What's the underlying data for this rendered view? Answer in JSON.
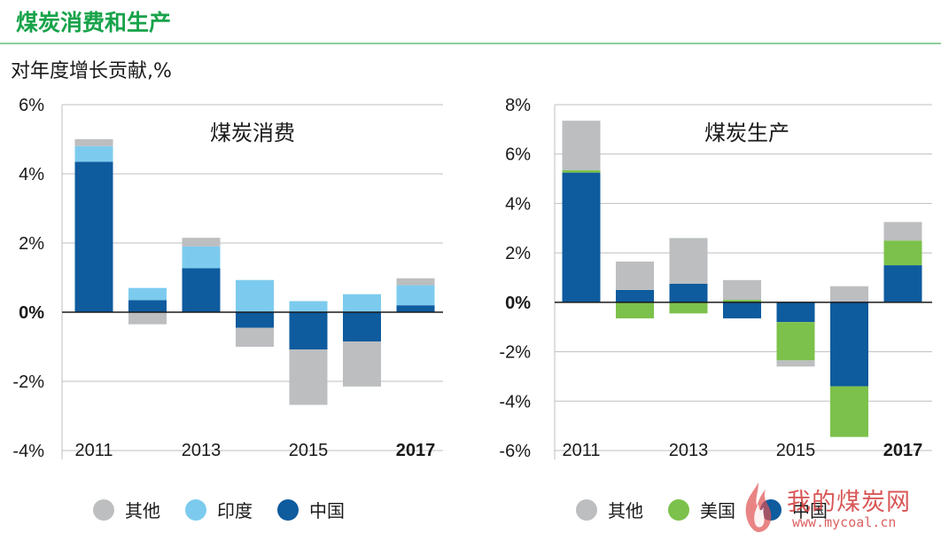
{
  "page_title": "煤炭消费和生产",
  "subtitle": "对年度增长贡献,%",
  "colors": {
    "other": "#bcbec0",
    "india": "#7ccbef",
    "china": "#0e5b9e",
    "usa": "#7cc14b",
    "title_green": "#17a34a"
  },
  "watermark": {
    "text": "我的煤炭网",
    "url": "www.mycoal.cn"
  },
  "chart_data": [
    {
      "type": "bar",
      "stacked": true,
      "title": "煤炭消费",
      "x": [
        2011,
        2012,
        2013,
        2014,
        2015,
        2016,
        2017
      ],
      "x_tick_labels": [
        "2011",
        "2013",
        "2015",
        "2017"
      ],
      "x_tick_bold": [
        "2017"
      ],
      "ylim": [
        -4,
        6
      ],
      "y_ticks": [
        6,
        4,
        2,
        0,
        -2,
        -4
      ],
      "y_tick_labels": [
        "6%",
        "4%",
        "2%",
        "0%",
        "-2%",
        "-4%"
      ],
      "grid": true,
      "series": [
        {
          "name": "中国",
          "color_key": "china",
          "values": [
            4.35,
            0.35,
            1.27,
            -0.45,
            -1.08,
            -0.85,
            0.2
          ]
        },
        {
          "name": "印度",
          "color_key": "india",
          "values": [
            0.45,
            0.35,
            0.63,
            0.93,
            0.32,
            0.52,
            0.58
          ]
        },
        {
          "name": "其他",
          "color_key": "other",
          "values": [
            0.2,
            -0.35,
            0.25,
            -0.55,
            -1.6,
            -1.3,
            0.2
          ]
        }
      ],
      "legend": [
        "其他",
        "印度",
        "中国"
      ]
    },
    {
      "type": "bar",
      "stacked": true,
      "title": "煤炭生产",
      "x": [
        2011,
        2012,
        2013,
        2014,
        2015,
        2016,
        2017
      ],
      "x_tick_labels": [
        "2011",
        "2013",
        "2015",
        "2017"
      ],
      "x_tick_bold": [
        "2017"
      ],
      "ylim": [
        -6,
        8
      ],
      "y_ticks": [
        8,
        6,
        4,
        2,
        0,
        -2,
        -4,
        -6
      ],
      "y_tick_labels": [
        "8%",
        "6%",
        "4%",
        "2%",
        "0%",
        "-2%",
        "-4%",
        "-6%"
      ],
      "grid": true,
      "series": [
        {
          "name": "中国",
          "color_key": "china",
          "values": [
            5.25,
            0.5,
            0.75,
            -0.65,
            -0.8,
            -3.4,
            1.5
          ]
        },
        {
          "name": "美国",
          "color_key": "usa",
          "values": [
            0.1,
            -0.65,
            -0.45,
            0.1,
            -1.55,
            -2.05,
            1.0
          ]
        },
        {
          "name": "其他",
          "color_key": "other",
          "values": [
            2.0,
            1.15,
            1.85,
            0.8,
            -0.25,
            0.65,
            0.75
          ]
        }
      ],
      "legend": [
        "其他",
        "美国",
        "中国"
      ]
    }
  ]
}
